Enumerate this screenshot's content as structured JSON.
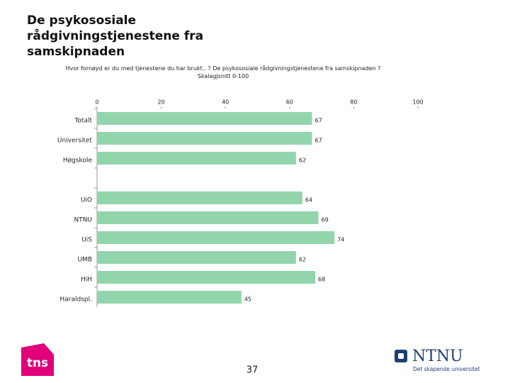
{
  "chart_data": {
    "type": "barh",
    "title": "De psykososiale rådgivningstjenestene fra samskipnaden",
    "subtitle": "Hvor fornøyd er du med tjenestene du har brukt.. ? De psykososiale rådgivningstjenestene fra samskipnaden ? Skalagjsnitt 0-100",
    "categories": [
      "Totalt",
      "Universitet",
      "Høgskole",
      null,
      "UiO",
      "NTNU",
      "UiS",
      "UMB",
      "HiH",
      "Haraldspl."
    ],
    "values": [
      67,
      67,
      62,
      null,
      64,
      69,
      74,
      62,
      68,
      45
    ],
    "color": "#92d5ac",
    "xlim": [
      0,
      100
    ],
    "xticks": [
      0,
      20,
      40,
      60,
      80,
      100
    ]
  },
  "page_number": "37",
  "logos": {
    "tns": "tns",
    "ntnu": "NTNU",
    "ntnu_tagline": "Det skapende universitet"
  }
}
